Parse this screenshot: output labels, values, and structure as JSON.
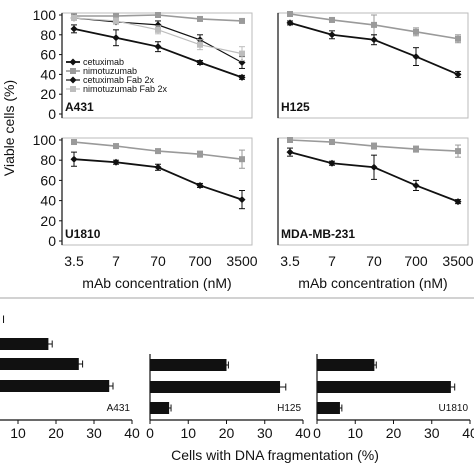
{
  "colors": {
    "cetuximab": "#111111",
    "nimotuzumab": "#9a9a9a",
    "cetuximab_fab": "#111111",
    "nimotuzumab_fab": "#bdbdbd",
    "bar": "#111111"
  },
  "line_panels": {
    "ylabel": "Viable cells (%)",
    "xlabel": "mAb concentration (nM)",
    "legend": [
      "cetuximab",
      "nimotuzumab",
      "cetuximab Fab 2x",
      "nimotuzumab Fab 2x"
    ]
  },
  "bar_panels": {
    "xlabel": "Cells with DNA fragmentation (%)"
  },
  "chart_data": [
    {
      "type": "line",
      "panel": "A431",
      "categories": [
        "3.5",
        "7",
        "70",
        "700",
        "3500"
      ],
      "ylim": [
        0,
        100
      ],
      "yticks": [
        0,
        20,
        40,
        60,
        80,
        100
      ],
      "series": [
        {
          "name": "cetuximab",
          "values": [
            86,
            77,
            68,
            52,
            37
          ],
          "err": [
            4,
            8,
            5,
            2,
            2
          ]
        },
        {
          "name": "nimotuzumab",
          "values": [
            99,
            99,
            100,
            96,
            94
          ],
          "err": [
            1,
            1,
            2,
            2,
            2
          ]
        },
        {
          "name": "cetuximab Fab 2x",
          "values": [
            97,
            93,
            90,
            75,
            52
          ],
          "err": [
            2,
            2,
            4,
            5,
            6
          ]
        },
        {
          "name": "nimotuzumab Fab 2x",
          "values": [
            97,
            94,
            85,
            70,
            61
          ],
          "err": [
            2,
            3,
            4,
            5,
            7
          ]
        }
      ]
    },
    {
      "type": "line",
      "panel": "H125",
      "categories": [
        "3.5",
        "7",
        "70",
        "700",
        "3500"
      ],
      "ylim": [
        0,
        100
      ],
      "series": [
        {
          "name": "nimotuzumab",
          "values": [
            101,
            95,
            90,
            83,
            76
          ],
          "err": [
            2,
            2,
            10,
            4,
            4
          ]
        },
        {
          "name": "cetuximab",
          "values": [
            92,
            80,
            75,
            58,
            40
          ],
          "err": [
            2,
            4,
            5,
            9,
            3
          ]
        }
      ]
    },
    {
      "type": "line",
      "panel": "U1810",
      "categories": [
        "3.5",
        "7",
        "70",
        "700",
        "3500"
      ],
      "ylim": [
        0,
        100
      ],
      "yticks": [
        0,
        20,
        40,
        60,
        80,
        100
      ],
      "series": [
        {
          "name": "nimotuzumab",
          "values": [
            98,
            94,
            89,
            86,
            81
          ],
          "err": [
            2,
            2,
            2,
            3,
            9
          ]
        },
        {
          "name": "cetuximab",
          "values": [
            81,
            78,
            73,
            55,
            41
          ],
          "err": [
            7,
            2,
            3,
            2,
            9
          ]
        }
      ]
    },
    {
      "type": "line",
      "panel": "MDA-MB-231",
      "categories": [
        "3.5",
        "7",
        "70",
        "700",
        "3500"
      ],
      "ylim": [
        0,
        100
      ],
      "series": [
        {
          "name": "nimotuzumab",
          "values": [
            100,
            98,
            94,
            91,
            89
          ],
          "err": [
            2,
            2,
            3,
            3,
            6
          ]
        },
        {
          "name": "cetuximab",
          "values": [
            88,
            77,
            73,
            55,
            39
          ],
          "err": [
            4,
            2,
            12,
            5,
            2
          ]
        }
      ]
    },
    {
      "type": "bar",
      "orientation": "horizontal",
      "panel": "A431",
      "values": [
        18,
        26,
        34
      ],
      "err": [
        1,
        1,
        1
      ],
      "xlim": [
        0,
        40
      ],
      "xticks": [
        10,
        20,
        30,
        40
      ]
    },
    {
      "type": "bar",
      "orientation": "horizontal",
      "panel": "H125",
      "values": [
        20,
        34,
        5
      ],
      "err": [
        0.5,
        1.5,
        0.5
      ],
      "xlim": [
        0,
        40
      ],
      "xticks": [
        0,
        10,
        20,
        30,
        40
      ]
    },
    {
      "type": "bar",
      "orientation": "horizontal",
      "panel": "U1810",
      "values": [
        15,
        35,
        6
      ],
      "err": [
        0.5,
        1,
        0.5
      ],
      "xlim": [
        0,
        40
      ],
      "xticks": [
        0,
        10,
        20,
        30,
        40
      ]
    }
  ]
}
